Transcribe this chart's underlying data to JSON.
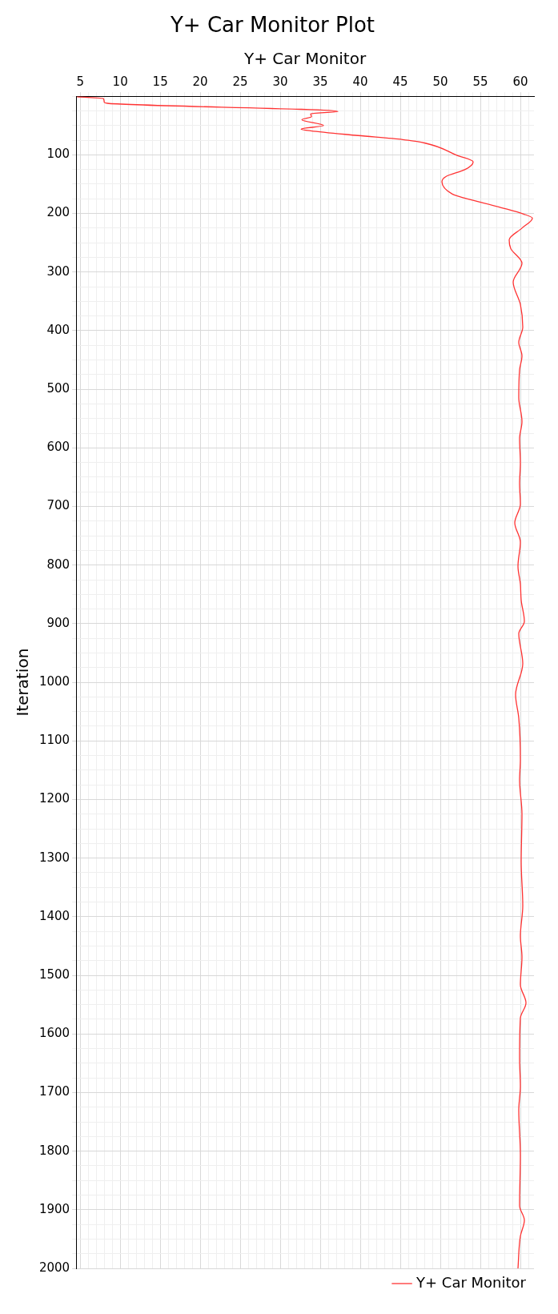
{
  "chart_data": {
    "type": "line",
    "title": "Y+ Car Monitor Plot",
    "xlabel": "Y+ Car Monitor",
    "ylabel": "Iteration",
    "x": [
      4.6,
      7.9,
      8.0,
      8.4,
      37.2,
      33.8,
      33.9,
      32.7,
      35.4,
      32.6,
      33.8,
      39.7,
      45.3,
      48.1,
      52.1,
      54.1,
      53.1,
      50.7,
      50.2,
      51.5,
      52.1,
      57.6,
      60.4,
      61.5,
      60.2,
      58.6,
      58.8,
      60.2,
      59.1,
      60.0,
      60.3,
      59.8,
      60.2,
      59.9,
      59.8,
      60.2,
      59.9,
      60.0,
      59.9,
      60.0,
      59.3,
      60.0,
      59.7,
      60.0,
      60.1,
      60.5,
      59.8,
      60.3,
      59.4,
      59.8,
      60.0,
      59.9,
      60.2,
      60.1,
      60.3,
      60.0,
      60.2,
      60.0,
      60.7,
      60.0,
      59.9,
      60.0,
      59.8,
      60.0,
      59.9,
      60.5,
      60.0,
      59.7
    ],
    "series": [
      {
        "name": "Y+ Car Monitor",
        "color": "#ff3333",
        "values": [
          1,
          4,
          10,
          12,
          26,
          30,
          35,
          40,
          50,
          56,
          59,
          67,
          74,
          80,
          101,
          112,
          125,
          137,
          146,
          167,
          170,
          190,
          201,
          208,
          225,
          245,
          260,
          285,
          317,
          355,
          394,
          420,
          443,
          467,
          514,
          555,
          584,
          626,
          661,
          696,
          728,
          761,
          802,
          832,
          860,
          896,
          917,
          968,
          1021,
          1061,
          1132,
          1167,
          1225,
          1306,
          1381,
          1433,
          1469,
          1516,
          1547,
          1573,
          1642,
          1689,
          1730,
          1806,
          1893,
          1918,
          1945,
          2000
        ]
      }
    ],
    "ylim": [
      2000,
      0
    ],
    "yticks": [
      {
        "value": 0,
        "label": null
      },
      {
        "value": 25,
        "label": null
      },
      {
        "value": 50,
        "label": null
      },
      {
        "value": 75,
        "label": null
      },
      100,
      {
        "value": 125,
        "label": null
      },
      {
        "value": 150,
        "label": null
      },
      {
        "value": 175,
        "label": null
      },
      200,
      {
        "value": 225,
        "label": null
      },
      {
        "value": 250,
        "label": null
      },
      {
        "value": 275,
        "label": null
      },
      300,
      {
        "value": 325,
        "label": null
      },
      {
        "value": 350,
        "label": null
      },
      {
        "value": 375,
        "label": null
      },
      400,
      {
        "value": 425,
        "label": null
      },
      {
        "value": 450,
        "label": null
      },
      {
        "value": 475,
        "label": null
      },
      500,
      {
        "value": 525,
        "label": null
      },
      {
        "value": 550,
        "label": null
      },
      {
        "value": 575,
        "label": null
      },
      600,
      {
        "value": 625,
        "label": null
      },
      {
        "value": 650,
        "label": null
      },
      {
        "value": 675,
        "label": null
      },
      700,
      {
        "value": 725,
        "label": null
      },
      {
        "value": 750,
        "label": null
      },
      {
        "value": 775,
        "label": null
      },
      800,
      {
        "value": 825,
        "label": null
      },
      {
        "value": 850,
        "label": null
      },
      {
        "value": 875,
        "label": null
      },
      900,
      {
        "value": 925,
        "label": null
      },
      {
        "value": 950,
        "label": null
      },
      {
        "value": 975,
        "label": null
      },
      1000,
      {
        "value": 1025,
        "label": null
      },
      {
        "value": 1050,
        "label": null
      },
      {
        "value": 1075,
        "label": null
      },
      1100,
      {
        "value": 1125,
        "label": null
      },
      {
        "value": 1150,
        "label": null
      },
      {
        "value": 1175,
        "label": null
      },
      1200,
      {
        "value": 1225,
        "label": null
      },
      {
        "value": 1250,
        "label": null
      },
      {
        "value": 1275,
        "label": null
      },
      1300,
      {
        "value": 1325,
        "label": null
      },
      {
        "value": 1350,
        "label": null
      },
      {
        "value": 1375,
        "label": null
      },
      1400,
      {
        "value": 1425,
        "label": null
      },
      {
        "value": 1450,
        "label": null
      },
      {
        "value": 1475,
        "label": null
      },
      1500,
      {
        "value": 1525,
        "label": null
      },
      {
        "value": 1550,
        "label": null
      },
      {
        "value": 1575,
        "label": null
      },
      1600,
      {
        "value": 1625,
        "label": null
      },
      {
        "value": 1650,
        "label": null
      },
      {
        "value": 1675,
        "label": null
      },
      1700,
      {
        "value": 1725,
        "label": null
      },
      {
        "value": 1750,
        "label": null
      },
      {
        "value": 1775,
        "label": null
      },
      1800,
      {
        "value": 1825,
        "label": null
      },
      {
        "value": 1850,
        "label": null
      },
      {
        "value": 1875,
        "label": null
      },
      1900,
      {
        "value": 1925,
        "label": null
      },
      {
        "value": 1950,
        "label": null
      },
      {
        "value": 1975,
        "label": null
      },
      2000
    ],
    "xlim": [
      4.5,
      61.7
    ],
    "xticks": [
      5,
      {
        "value": 6,
        "label": null
      },
      {
        "value": 7,
        "label": null
      },
      {
        "value": 8,
        "label": null
      },
      {
        "value": 9,
        "label": null
      },
      10,
      {
        "value": 11,
        "label": null
      },
      {
        "value": 12,
        "label": null
      },
      {
        "value": 13,
        "label": null
      },
      {
        "value": 14,
        "label": null
      },
      15,
      {
        "value": 16,
        "label": null
      },
      {
        "value": 17,
        "label": null
      },
      {
        "value": 18,
        "label": null
      },
      {
        "value": 19,
        "label": null
      },
      20,
      {
        "value": 21,
        "label": null
      },
      {
        "value": 22,
        "label": null
      },
      {
        "value": 23,
        "label": null
      },
      {
        "value": 24,
        "label": null
      },
      25,
      {
        "value": 26,
        "label": null
      },
      {
        "value": 27,
        "label": null
      },
      {
        "value": 28,
        "label": null
      },
      {
        "value": 29,
        "label": null
      },
      30,
      {
        "value": 31,
        "label": null
      },
      {
        "value": 32,
        "label": null
      },
      {
        "value": 33,
        "label": null
      },
      {
        "value": 34,
        "label": null
      },
      35,
      {
        "value": 36,
        "label": null
      },
      {
        "value": 37,
        "label": null
      },
      {
        "value": 38,
        "label": null
      },
      {
        "value": 39,
        "label": null
      },
      40,
      {
        "value": 41,
        "label": null
      },
      {
        "value": 42,
        "label": null
      },
      {
        "value": 43,
        "label": null
      },
      {
        "value": 44,
        "label": null
      },
      45,
      {
        "value": 46,
        "label": null
      },
      {
        "value": 47,
        "label": null
      },
      {
        "value": 48,
        "label": null
      },
      {
        "value": 49,
        "label": null
      },
      50,
      {
        "value": 51,
        "label": null
      },
      {
        "value": 52,
        "label": null
      },
      {
        "value": 53,
        "label": null
      },
      {
        "value": 54,
        "label": null
      },
      55,
      {
        "value": 56,
        "label": null
      },
      {
        "value": 57,
        "label": null
      },
      {
        "value": 58,
        "label": null
      },
      {
        "value": 59,
        "label": null
      },
      60,
      {
        "value": 61,
        "label": null
      }
    ],
    "grid": true,
    "legend": "bottom right"
  }
}
